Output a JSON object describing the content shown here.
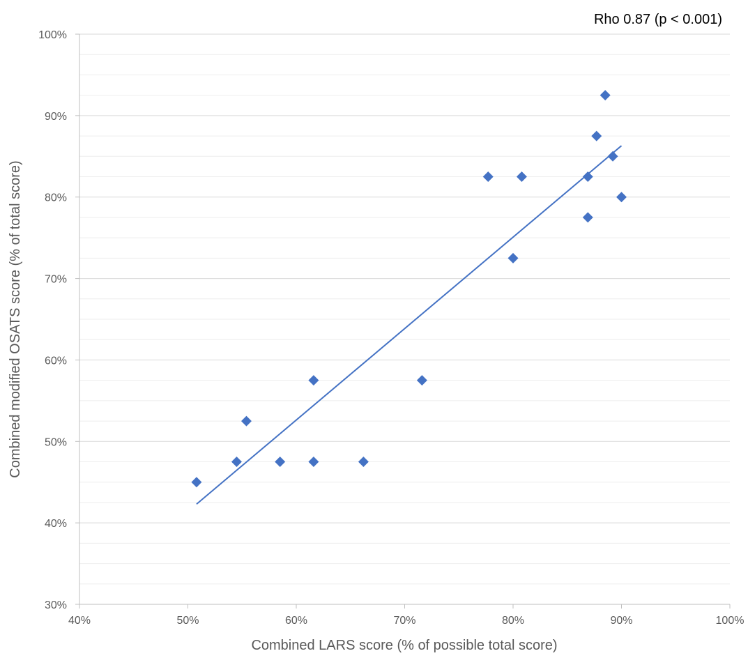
{
  "chart_data": {
    "type": "scatter",
    "xlabel": "Combined LARS score (% of possible total score)",
    "ylabel": "Combined modified OSATS score (% of total score)",
    "annotation": "Rho 0.87 (p < 0.001)",
    "xlim": [
      40,
      100
    ],
    "ylim": [
      30,
      100
    ],
    "x_ticks": [
      {
        "value": 40,
        "label": "40%"
      },
      {
        "value": 50,
        "label": "50%"
      },
      {
        "value": 60,
        "label": "60%"
      },
      {
        "value": 70,
        "label": "70%"
      },
      {
        "value": 80,
        "label": "80%"
      },
      {
        "value": 90,
        "label": "90%"
      },
      {
        "value": 100,
        "label": "100%"
      }
    ],
    "y_ticks": [
      {
        "value": 30,
        "label": "30%"
      },
      {
        "value": 40,
        "label": "40%"
      },
      {
        "value": 50,
        "label": "50%"
      },
      {
        "value": 60,
        "label": "60%"
      },
      {
        "value": 70,
        "label": "70%"
      },
      {
        "value": 80,
        "label": "80%"
      },
      {
        "value": 90,
        "label": "90%"
      },
      {
        "value": 100,
        "label": "100%"
      }
    ],
    "minor_y_step": 2.5,
    "grid": true,
    "marker": "diamond",
    "colors": {
      "points": "#4472C4",
      "trendline": "#4472C4",
      "grid": "#D9D9D9",
      "axis": "#BFBFBF"
    },
    "points": [
      {
        "x": 50.8,
        "y": 45.0
      },
      {
        "x": 54.5,
        "y": 47.5
      },
      {
        "x": 55.4,
        "y": 52.5
      },
      {
        "x": 58.5,
        "y": 47.5
      },
      {
        "x": 61.6,
        "y": 57.5
      },
      {
        "x": 61.6,
        "y": 47.5
      },
      {
        "x": 66.2,
        "y": 47.5
      },
      {
        "x": 71.6,
        "y": 57.5
      },
      {
        "x": 77.7,
        "y": 82.5
      },
      {
        "x": 80.0,
        "y": 72.5
      },
      {
        "x": 80.8,
        "y": 82.5
      },
      {
        "x": 86.9,
        "y": 82.5
      },
      {
        "x": 86.9,
        "y": 77.5
      },
      {
        "x": 87.7,
        "y": 87.5
      },
      {
        "x": 88.5,
        "y": 92.5
      },
      {
        "x": 89.2,
        "y": 85.0
      },
      {
        "x": 90.0,
        "y": 80.0
      }
    ],
    "trendline": {
      "x1": 50.8,
      "y1": 42.3,
      "x2": 90.0,
      "y2": 86.3
    }
  }
}
